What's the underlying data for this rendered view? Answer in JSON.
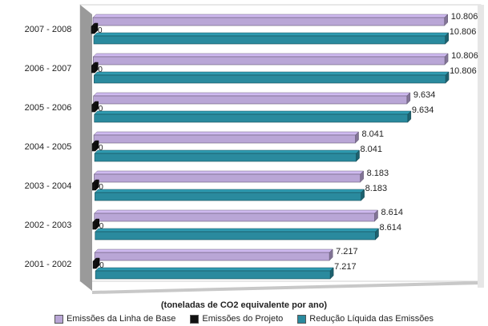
{
  "chart_data": {
    "type": "bar",
    "orientation": "horizontal",
    "categories": [
      "2007 - 2008",
      "2006 - 2007",
      "2005 - 2006",
      "2004 - 2005",
      "2003 - 2004",
      "2002 - 2003",
      "2001 - 2002"
    ],
    "series": [
      {
        "name": "Emissões da Linha de Base",
        "color": "#b9a6d6",
        "values": [
          10806,
          10806,
          9634,
          8041,
          8183,
          8614,
          7217
        ],
        "labels": [
          "10.806",
          "10.806",
          "9.634",
          "8.041",
          "8.183",
          "8.614",
          "7.217"
        ]
      },
      {
        "name": "Emissões do Projeto",
        "color": "#111111",
        "values": [
          0,
          0,
          0,
          0,
          0,
          0,
          0
        ],
        "labels": [
          "0",
          "0",
          "0",
          "0",
          "0",
          "0",
          "0"
        ]
      },
      {
        "name": "Redução Líquida das Emissões",
        "color": "#2a8a9e",
        "values": [
          10806,
          10806,
          9634,
          8041,
          8183,
          8614,
          7217
        ],
        "labels": [
          "10.806",
          "10.806",
          "9.634",
          "8.041",
          "8.183",
          "8.614",
          "7.217"
        ]
      }
    ],
    "xlabel": "(toneladas de CO2 equivalente por ano)",
    "xlim": [
      0,
      11000
    ],
    "grid": false,
    "legend_position": "bottom",
    "three_d": true
  }
}
